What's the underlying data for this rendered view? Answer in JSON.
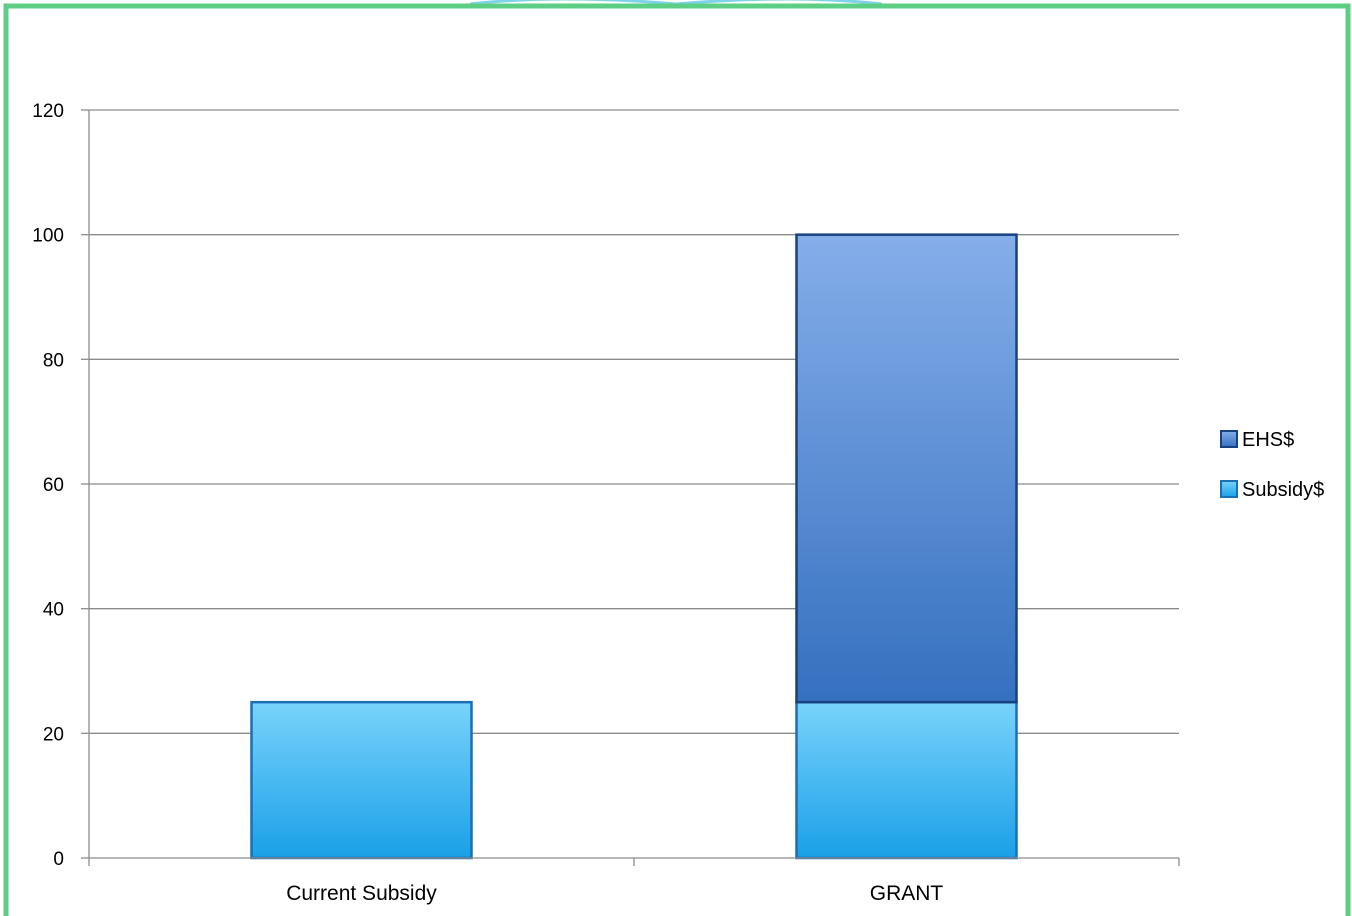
{
  "colors": {
    "frame": "#5ccf84",
    "top_ribbon": "#7fd3e8",
    "gridline": "#8c8c8c",
    "axis": "#8c8c8c",
    "subsidy_top": "#79d3fb",
    "subsidy_bottom": "#1aa0e8",
    "subsidy_stroke": "#1b6fb3",
    "ehs_top": "#85aeea",
    "ehs_bottom": "#3570bf",
    "ehs_stroke": "#17417f"
  },
  "chart_data": {
    "type": "bar",
    "stacked": true,
    "title": "",
    "xlabel": "",
    "ylabel": "",
    "categories": [
      "Current Subsidy",
      "GRANT"
    ],
    "series": [
      {
        "name": "Subsidy$",
        "values": [
          25,
          25
        ],
        "color": "#1aa0e8"
      },
      {
        "name": "EHS$",
        "values": [
          0,
          75
        ],
        "color": "#3570bf"
      }
    ],
    "ylim": [
      0,
      120
    ],
    "yticks": [
      0,
      20,
      40,
      60,
      80,
      100,
      120
    ],
    "ytick_labels": [
      "0",
      "20",
      "40",
      "60",
      "80",
      "100",
      "120"
    ],
    "grid": true,
    "legend_position": "right",
    "legend": [
      "EHS$",
      "Subsidy$"
    ]
  }
}
